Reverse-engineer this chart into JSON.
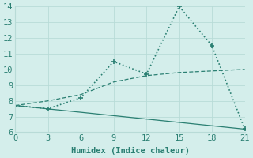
{
  "xlabel": "Humidex (Indice chaleur)",
  "line1": {
    "x": [
      0,
      3,
      6,
      9,
      12,
      15,
      18,
      21
    ],
    "y": [
      7.7,
      7.5,
      8.2,
      10.5,
      9.7,
      14.0,
      11.5,
      6.2
    ],
    "color": "#2a7f72",
    "linestyle": "dotted",
    "marker": "+",
    "markersize": 4,
    "linewidth": 1.2
  },
  "line2": {
    "x": [
      0,
      21
    ],
    "y": [
      7.7,
      6.2
    ],
    "color": "#2a7f72",
    "linestyle": "solid",
    "linewidth": 0.9
  },
  "line3": {
    "x": [
      0,
      3,
      6,
      9,
      12,
      15,
      18,
      21
    ],
    "y": [
      7.7,
      8.0,
      8.4,
      9.2,
      9.6,
      9.8,
      9.9,
      10.0
    ],
    "color": "#2a7f72",
    "linestyle": "dashed",
    "linewidth": 0.9
  },
  "xlim": [
    0,
    21
  ],
  "ylim": [
    6,
    14
  ],
  "xticks": [
    0,
    3,
    6,
    9,
    12,
    15,
    18,
    21
  ],
  "yticks": [
    6,
    7,
    8,
    9,
    10,
    11,
    12,
    13,
    14
  ],
  "bg_color": "#d4eeeb",
  "grid_color": "#b8dbd7",
  "tick_color": "#2a7f72",
  "label_fontsize": 7.5
}
